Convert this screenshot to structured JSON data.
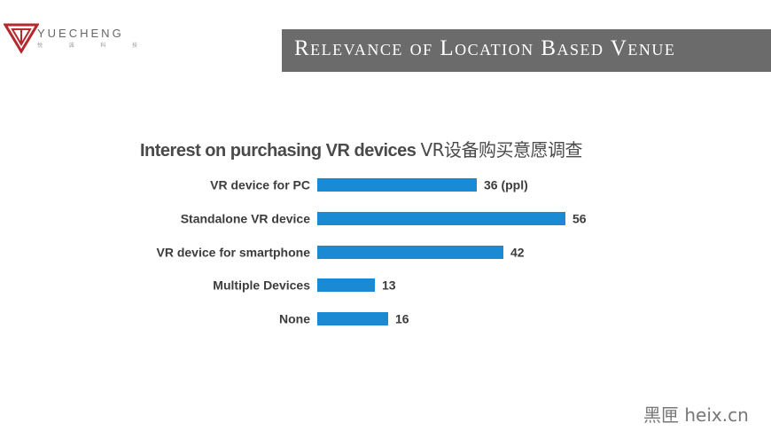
{
  "logo": {
    "name": "YUECHENG",
    "sub": "悦 诚 科 技"
  },
  "slide_title": "Relevance of Location Based Venue",
  "chart_title": {
    "en": "Interest on purchasing VR devices",
    "cn": "VR设备购买意愿调查"
  },
  "chart_data": {
    "type": "bar",
    "orientation": "horizontal",
    "categories": [
      "VR device for PC",
      "Standalone VR device",
      "VR device for smartphone",
      "Multiple Devices",
      "None"
    ],
    "values": [
      36,
      56,
      42,
      13,
      16
    ],
    "data_labels": [
      "36 (ppl)",
      "56",
      "42",
      "13",
      "16"
    ],
    "bar_color": "#1a8ad4",
    "label_color": "#3c3c3c"
  },
  "watermark": "黑匣 heix.cn"
}
